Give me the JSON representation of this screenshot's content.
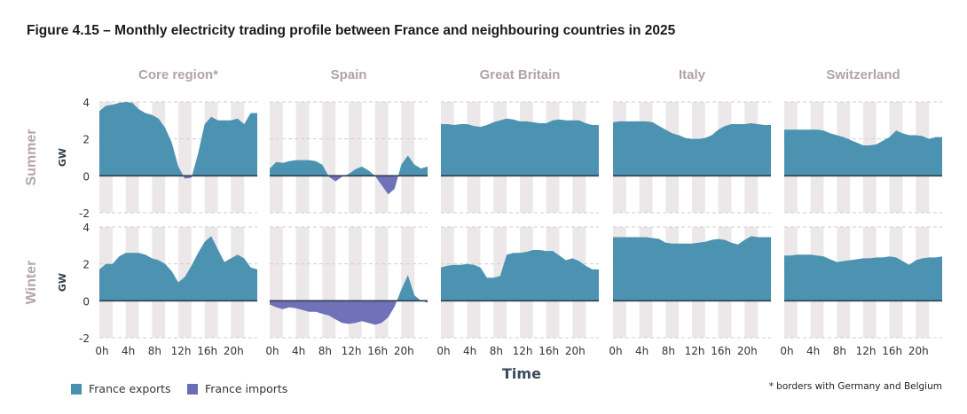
{
  "title": "Figure 4.15 – Monthly electricity trading profile between France and neighbouring countries in 2025",
  "footnote": "* borders with Germany and Belgium",
  "colors": {
    "exports": "#4690b0",
    "imports": "#6b6cb6",
    "band": "#ece8ea",
    "zero_line": "#2f3e4e",
    "panel_title": "#b0a3aa"
  },
  "chart_data": {
    "type": "area",
    "layout": "small-multiples grid (2 rows x 5 columns)",
    "xlabel": "Time",
    "ylabel": "GW",
    "ylim": [
      -2,
      4
    ],
    "yticks": [
      "4",
      "2",
      "0",
      "-2"
    ],
    "xticks": [
      "0h",
      "4h",
      "8h",
      "12h",
      "16h",
      "20h"
    ],
    "x": [
      0,
      1,
      2,
      3,
      4,
      5,
      6,
      7,
      8,
      9,
      10,
      11,
      12,
      13,
      14,
      15,
      16,
      17,
      18,
      19,
      20,
      21,
      22,
      23,
      24
    ],
    "grid": "dashed horizontal gridlines; shaded alternating 2-hour bands",
    "legend": {
      "position": "bottom-left",
      "entries": [
        "France exports",
        "France imports"
      ]
    },
    "columns": [
      "Core region*",
      "Spain",
      "Great Britain",
      "Italy",
      "Switzerland"
    ],
    "rows": [
      "Summer",
      "Winter"
    ],
    "series": {
      "Summer": [
        [
          3.5,
          3.8,
          3.85,
          3.95,
          4.0,
          3.95,
          3.6,
          3.4,
          3.3,
          3.1,
          2.6,
          1.8,
          0.5,
          -0.15,
          -0.1,
          1.2,
          2.8,
          3.2,
          3.0,
          3.0,
          3.0,
          3.1,
          2.8,
          3.4,
          3.4
        ],
        [
          0.4,
          0.75,
          0.7,
          0.8,
          0.85,
          0.85,
          0.85,
          0.8,
          0.6,
          -0.05,
          -0.3,
          -0.05,
          0.1,
          0.35,
          0.5,
          0.3,
          0.0,
          -0.5,
          -1.0,
          -0.7,
          0.6,
          1.1,
          0.6,
          0.4,
          0.5
        ],
        [
          2.8,
          2.8,
          2.75,
          2.8,
          2.8,
          2.7,
          2.65,
          2.75,
          2.9,
          3.0,
          3.1,
          3.05,
          2.95,
          2.95,
          2.9,
          2.85,
          2.85,
          3.0,
          3.05,
          3.0,
          3.0,
          3.0,
          2.85,
          2.75,
          2.75
        ],
        [
          2.9,
          2.95,
          2.95,
          2.95,
          2.95,
          2.95,
          2.9,
          2.7,
          2.5,
          2.3,
          2.2,
          2.05,
          2.0,
          2.0,
          2.05,
          2.2,
          2.5,
          2.7,
          2.8,
          2.8,
          2.8,
          2.85,
          2.8,
          2.75,
          2.75
        ],
        [
          2.5,
          2.5,
          2.5,
          2.5,
          2.5,
          2.5,
          2.45,
          2.3,
          2.2,
          2.1,
          1.95,
          1.8,
          1.65,
          1.65,
          1.7,
          1.9,
          2.1,
          2.45,
          2.3,
          2.2,
          2.2,
          2.15,
          2.0,
          2.1,
          2.1
        ]
      ],
      "Winter": [
        [
          1.7,
          2.0,
          2.0,
          2.4,
          2.6,
          2.6,
          2.6,
          2.5,
          2.3,
          2.2,
          2.0,
          1.6,
          1.0,
          1.3,
          1.9,
          2.6,
          3.2,
          3.5,
          2.8,
          2.1,
          2.3,
          2.5,
          2.3,
          1.8,
          1.7
        ],
        [
          -0.2,
          -0.35,
          -0.45,
          -0.35,
          -0.4,
          -0.5,
          -0.6,
          -0.6,
          -0.7,
          -0.8,
          -1.0,
          -1.2,
          -1.25,
          -1.2,
          -1.1,
          -1.2,
          -1.3,
          -1.2,
          -0.9,
          -0.3,
          0.6,
          1.4,
          0.3,
          0.0,
          -0.1
        ],
        [
          1.8,
          1.9,
          1.95,
          1.95,
          2.0,
          1.95,
          1.8,
          1.25,
          1.25,
          1.35,
          2.5,
          2.6,
          2.6,
          2.65,
          2.75,
          2.75,
          2.7,
          2.7,
          2.45,
          2.2,
          2.3,
          2.15,
          1.9,
          1.7,
          1.7
        ],
        [
          3.45,
          3.45,
          3.45,
          3.45,
          3.45,
          3.45,
          3.4,
          3.35,
          3.15,
          3.1,
          3.1,
          3.1,
          3.1,
          3.15,
          3.2,
          3.3,
          3.35,
          3.3,
          3.15,
          3.05,
          3.3,
          3.5,
          3.45,
          3.45,
          3.45
        ],
        [
          2.45,
          2.45,
          2.5,
          2.5,
          2.5,
          2.45,
          2.4,
          2.25,
          2.1,
          2.15,
          2.2,
          2.25,
          2.3,
          2.3,
          2.35,
          2.35,
          2.4,
          2.35,
          2.15,
          1.95,
          2.2,
          2.3,
          2.35,
          2.35,
          2.4
        ]
      ]
    }
  }
}
